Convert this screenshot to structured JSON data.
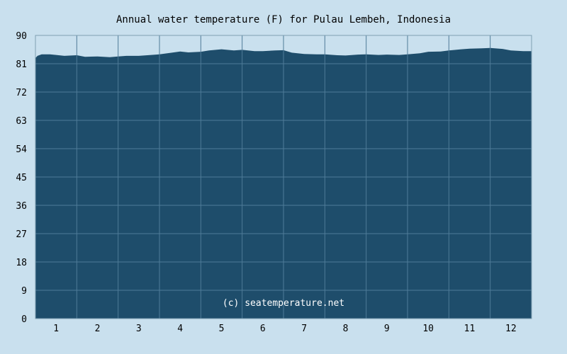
{
  "chart_data": {
    "type": "area",
    "title": "Annual water temperature (F) for Pulau Lembeh, Indonesia",
    "watermark": "(c) seatemperature.net",
    "xlabel": "",
    "ylabel": "",
    "xlim": [
      0.5,
      12.5
    ],
    "ylim": [
      0,
      90
    ],
    "y_ticks": [
      0,
      9,
      18,
      27,
      36,
      45,
      54,
      63,
      72,
      81,
      90
    ],
    "x_ticks": [
      1,
      2,
      3,
      4,
      5,
      6,
      7,
      8,
      9,
      10,
      11,
      12
    ],
    "grid": true,
    "colors": {
      "background": "#c9e0ee",
      "fill": "#1e4d6b",
      "grid": "#4f7b98",
      "axis": "#7f9fb3"
    },
    "x": [
      0.5,
      0.55,
      0.65,
      0.85,
      1.0,
      1.2,
      1.5,
      1.7,
      2.0,
      2.3,
      2.5,
      2.7,
      3.0,
      3.3,
      3.5,
      3.8,
      4.0,
      4.2,
      4.5,
      4.7,
      5.0,
      5.3,
      5.5,
      5.8,
      6.0,
      6.3,
      6.5,
      6.7,
      7.0,
      7.3,
      7.5,
      7.8,
      8.0,
      8.3,
      8.5,
      8.8,
      9.0,
      9.3,
      9.5,
      9.8,
      10.0,
      10.3,
      10.5,
      10.8,
      11.0,
      11.3,
      11.5,
      11.8,
      12.0,
      12.3,
      12.5
    ],
    "values": [
      82.8,
      83.5,
      84.0,
      84.0,
      83.8,
      83.5,
      83.7,
      83.2,
      83.3,
      83.1,
      83.3,
      83.5,
      83.5,
      83.8,
      84.0,
      84.5,
      84.9,
      84.6,
      84.8,
      85.2,
      85.6,
      85.2,
      85.4,
      85.0,
      85.0,
      85.2,
      85.3,
      84.5,
      84.1,
      84.0,
      84.0,
      83.7,
      83.6,
      83.9,
      84.0,
      83.8,
      83.9,
      83.8,
      84.0,
      84.3,
      84.8,
      84.9,
      85.2,
      85.6,
      85.8,
      85.9,
      86.0,
      85.7,
      85.2,
      85.0,
      85.0
    ]
  }
}
